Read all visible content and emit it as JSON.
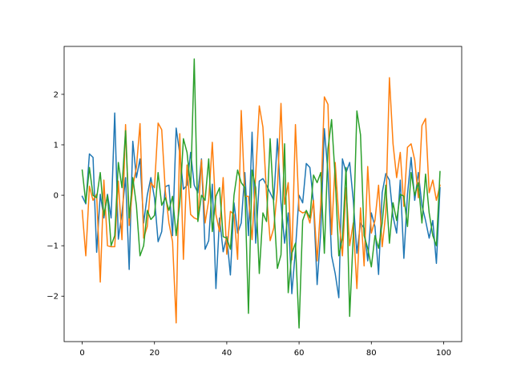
{
  "chart_data": {
    "type": "line",
    "title": "",
    "xlabel": "",
    "ylabel": "",
    "xlim": [
      -5,
      105
    ],
    "ylim": [
      -2.9,
      2.95
    ],
    "x_ticks": [
      0,
      20,
      40,
      60,
      80,
      100
    ],
    "y_ticks": [
      -2,
      -1,
      0,
      1,
      2
    ],
    "x_tick_labels": [
      "0",
      "20",
      "40",
      "60",
      "80",
      "100"
    ],
    "y_tick_labels": [
      "−2",
      "−1",
      "0",
      "1",
      "2"
    ],
    "grid": false,
    "legend": "none",
    "x": [
      0,
      1,
      2,
      3,
      4,
      5,
      6,
      7,
      8,
      9,
      10,
      11,
      12,
      13,
      14,
      15,
      16,
      17,
      18,
      19,
      20,
      21,
      22,
      23,
      24,
      25,
      26,
      27,
      28,
      29,
      30,
      31,
      32,
      33,
      34,
      35,
      36,
      37,
      38,
      39,
      40,
      41,
      42,
      43,
      44,
      45,
      46,
      47,
      48,
      49,
      50,
      51,
      52,
      53,
      54,
      55,
      56,
      57,
      58,
      59,
      60,
      61,
      62,
      63,
      64,
      65,
      66,
      67,
      68,
      69,
      70,
      71,
      72,
      73,
      74,
      75,
      76,
      77,
      78,
      79,
      80,
      81,
      82,
      83,
      84,
      85,
      86,
      87,
      88,
      89,
      90,
      91,
      92,
      93,
      94,
      95,
      96,
      97,
      98,
      99
    ],
    "series": [
      {
        "color": "#1f77b4",
        "values": [
          -0.02,
          -0.17,
          0.82,
          0.75,
          -1.13,
          0.02,
          -0.45,
          0.02,
          -0.45,
          1.63,
          -0.87,
          -0.35,
          0.35,
          -1.47,
          1.07,
          0.35,
          0.72,
          -0.55,
          0.0,
          0.35,
          -0.05,
          -0.92,
          -0.72,
          0.17,
          0.2,
          -0.8,
          1.33,
          0.82,
          0.12,
          0.2,
          0.85,
          0.2,
          0.05,
          0.72,
          -1.07,
          -0.9,
          0.22,
          -1.85,
          -0.45,
          -1.12,
          -0.82,
          -1.58,
          -0.15,
          -0.75,
          -0.55,
          0.45,
          -0.8,
          1.25,
          -0.95,
          0.28,
          0.33,
          0.2,
          0.05,
          -0.1,
          1.12,
          -0.15,
          -0.95,
          -0.35,
          -1.95,
          -1.08,
          0.0,
          -0.15,
          0.63,
          0.55,
          -0.15,
          -1.77,
          -0.72,
          1.32,
          0.45,
          -1.2,
          -1.55,
          -2.03,
          0.72,
          0.45,
          0.65,
          -0.1,
          -1.15,
          -0.55,
          -0.65,
          -1.3,
          -0.35,
          -0.62,
          -1.57,
          0.05,
          0.43,
          0.3,
          -0.42,
          -0.75,
          0.3,
          -1.25,
          0.02,
          0.75,
          -0.1,
          0.45,
          -0.2,
          -0.5,
          -0.85,
          -0.5,
          -1.35,
          0.15
        ]
      },
      {
        "color": "#ff7f0e",
        "values": [
          -0.3,
          -1.2,
          0.18,
          -0.1,
          0.02,
          -1.72,
          0.3,
          -1.0,
          -1.02,
          -1.02,
          0.28,
          -0.88,
          1.4,
          -0.6,
          0.18,
          0.55,
          1.42,
          -0.85,
          -0.62,
          0.25,
          0.15,
          1.43,
          1.3,
          0.08,
          -0.55,
          -0.92,
          -2.53,
          1.22,
          -1.27,
          0.6,
          -0.38,
          -0.45,
          -0.48,
          0.7,
          -0.55,
          -0.1,
          1.05,
          -0.38,
          -0.72,
          0.35,
          -1.17,
          -0.32,
          -0.38,
          -1.27,
          1.68,
          -0.02,
          -0.02,
          -0.88,
          0.4,
          1.77,
          1.35,
          0.02,
          -0.9,
          -0.65,
          0.1,
          1.82,
          -0.18,
          0.25,
          -1.28,
          1.4,
          -0.3,
          -0.35,
          -0.32,
          -0.55,
          -0.1,
          -1.3,
          -0.18,
          1.95,
          1.8,
          -0.78,
          0.65,
          -0.45,
          -1.2,
          0.15,
          -1.0,
          -0.55,
          -1.85,
          -0.25,
          -1.4,
          0.57,
          -0.75,
          -0.5,
          0.2,
          -1.02,
          -0.35,
          2.33,
          1.02,
          0.35,
          0.85,
          -0.22,
          0.95,
          1.02,
          0.7,
          -0.05,
          1.38,
          1.52,
          0.05,
          0.3,
          -0.1,
          0.2
        ]
      },
      {
        "color": "#2ca02c",
        "values": [
          0.5,
          -0.15,
          0.55,
          0.0,
          -0.05,
          0.45,
          -0.4,
          0.0,
          -1.0,
          -0.8,
          0.65,
          0.15,
          1.28,
          -0.45,
          0.35,
          -0.2,
          -1.2,
          -1.0,
          -0.3,
          -0.48,
          -0.4,
          0.45,
          -0.2,
          -0.05,
          -0.3,
          -0.02,
          -0.8,
          -0.15,
          1.12,
          0.85,
          0.15,
          2.7,
          -0.52,
          0.0,
          -0.1,
          0.72,
          -0.72,
          -0.02,
          0.15,
          -0.82,
          -0.85,
          -1.07,
          0.0,
          0.5,
          0.25,
          0.15,
          -2.34,
          0.5,
          0.15,
          -1.55,
          -0.35,
          -0.52,
          1.12,
          -0.2,
          -1.45,
          -1.18,
          1.02,
          -1.93,
          -1.15,
          -0.95,
          -2.63,
          -0.5,
          -0.3,
          -0.45,
          0.4,
          0.25,
          0.45,
          -1.15,
          0.92,
          1.5,
          0.35,
          -1.2,
          -0.85,
          0.55,
          -2.4,
          -0.8,
          1.67,
          1.2,
          -0.8,
          -1.05,
          -1.42,
          -0.8,
          -1.05,
          -0.55,
          0.2,
          -0.95,
          -0.15,
          -0.5,
          0.02,
          -0.02,
          -0.62,
          0.45,
          0.0,
          0.25,
          -0.55,
          0.42,
          -0.35,
          -0.8,
          -1.0,
          0.47
        ]
      }
    ]
  }
}
